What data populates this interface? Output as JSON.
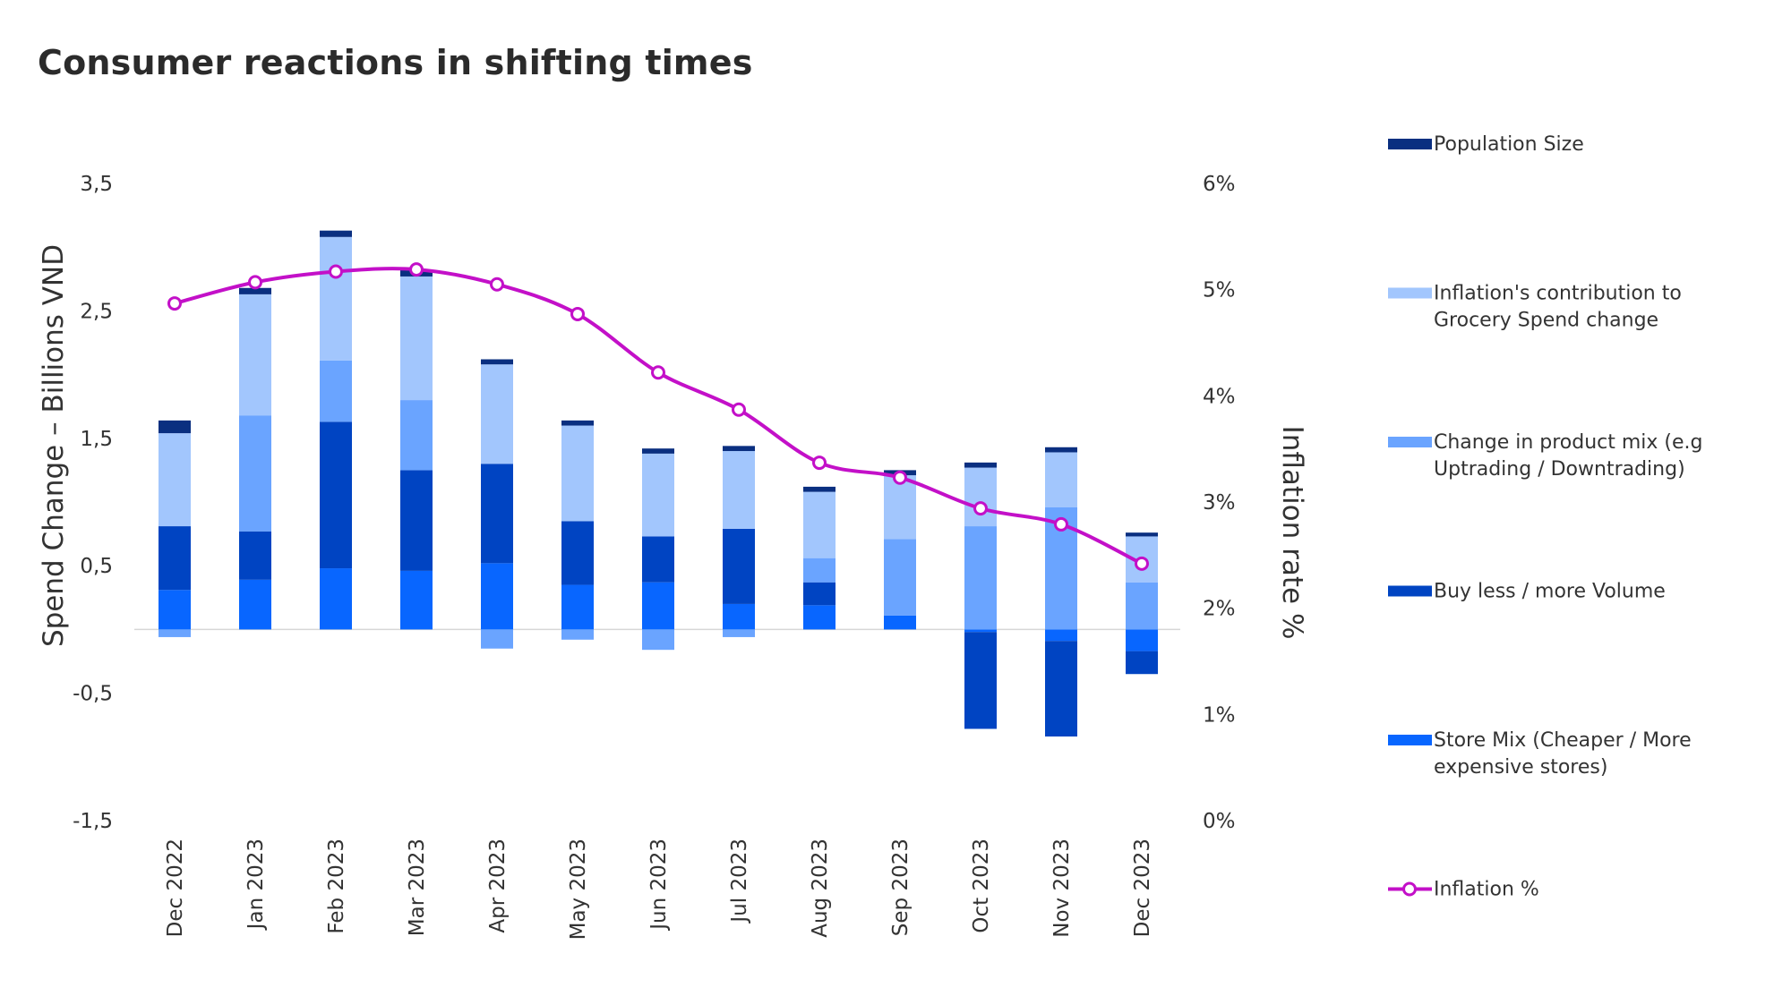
{
  "chart_data": {
    "type": "bar",
    "stacked": true,
    "title": "Consumer reactions in shifting times",
    "xlabel": "",
    "ylabel": "Spend Change – Billions VND",
    "y2label": "Inflation rate %",
    "ylim": [
      -1.5,
      3.5
    ],
    "y2lim": [
      0,
      6
    ],
    "y_ticks": [
      "3,5",
      "2,5",
      "1,5",
      "0,5",
      "-0,5",
      "-1,5"
    ],
    "y2_ticks": [
      "6%",
      "5%",
      "4%",
      "3%",
      "2%",
      "1%",
      "0%"
    ],
    "grid": false,
    "legend_position": "right",
    "categories": [
      "Dec 2022",
      "Jan 2023",
      "Feb 2023",
      "Mar 2023",
      "Apr 2023",
      "May 2023",
      "Jun 2023",
      "Jul 2023",
      "Aug 2023",
      "Sep 2023",
      "Oct 2023",
      "Nov 2023",
      "Dec 2023"
    ],
    "series": [
      {
        "name": "Store Mix (Cheaper / More expensive stores)",
        "legend_lines": [
          "Store Mix (Cheaper / More",
          "expensive stores)"
        ],
        "color": "#0866ff",
        "values": [
          0.31,
          0.39,
          0.48,
          0.46,
          0.52,
          0.35,
          0.37,
          0.2,
          0.19,
          0.11,
          -0.02,
          -0.09,
          -0.17
        ]
      },
      {
        "name": "Buy less / more Volume",
        "legend_lines": [
          "Buy less / more Volume"
        ],
        "color": "#0044c2",
        "values": [
          0.5,
          0.38,
          1.15,
          0.79,
          0.78,
          0.5,
          0.36,
          0.59,
          0.18,
          0,
          -0.76,
          -0.75,
          -0.18
        ]
      },
      {
        "name": "Change in product mix (e.g Uptrading / Downtrading)",
        "legend_lines": [
          "Change in product mix (e.g",
          "Uptrading / Downtrading)"
        ],
        "color": "#6aa4ff",
        "values": [
          -0.06,
          0.91,
          0.48,
          0.55,
          -0.15,
          -0.08,
          -0.16,
          -0.06,
          0.19,
          0.6,
          0.81,
          0.96,
          0.37
        ]
      },
      {
        "name": "Inflation's contribution to Grocery Spend change",
        "legend_lines": [
          "Inflation's contribution to",
          "Grocery Spend change"
        ],
        "color": "#a2c6fd",
        "values": [
          0.73,
          0.95,
          0.97,
          0.97,
          0.78,
          0.75,
          0.65,
          0.61,
          0.52,
          0.5,
          0.46,
          0.43,
          0.36
        ]
      },
      {
        "name": "Population Size",
        "legend_lines": [
          "Population Size"
        ],
        "color": "#0a2f80",
        "values": [
          0.1,
          0.05,
          0.05,
          0.05,
          0.04,
          0.04,
          0.04,
          0.04,
          0.04,
          0.04,
          0.04,
          0.04,
          0.03
        ]
      }
    ],
    "line_series": {
      "name": "Inflation %",
      "legend_lines": [
        "Inflation %"
      ],
      "color": "#c310c8",
      "axis": "right",
      "values": [
        4.87,
        5.07,
        5.17,
        5.19,
        5.05,
        4.77,
        4.22,
        3.87,
        3.37,
        3.23,
        2.94,
        2.79,
        2.42
      ]
    },
    "legend_order": [
      "Population Size",
      "Inflation's contribution to Grocery Spend change",
      "Change in product mix (e.g Uptrading / Downtrading)",
      "Buy less / more Volume",
      "Store Mix (Cheaper / More expensive stores)",
      "Inflation %"
    ]
  }
}
